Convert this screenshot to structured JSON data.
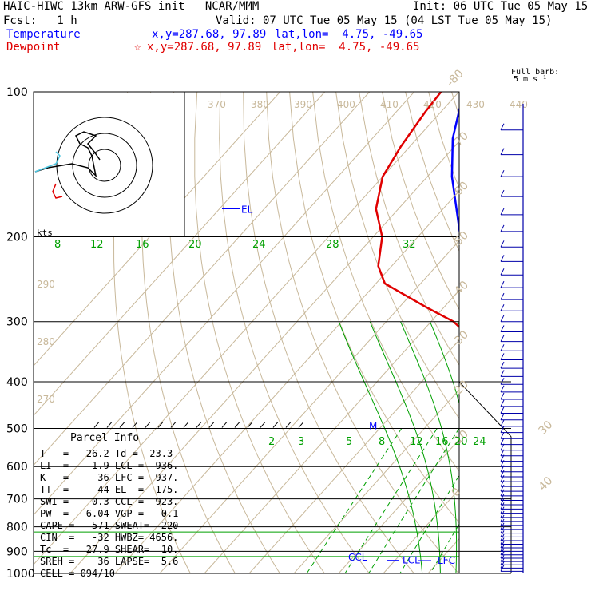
{
  "header": {
    "title": "HAIC-HIWC 13km ARW-GFS init   NCAR/MMM",
    "init": "Init: 06 UTC Tue 05 May 15",
    "fcst": "Fcst:   1 h",
    "valid": "Valid: 07 UTC Tue 05 May 15 (04 LST Tue 05 May 15)",
    "temperature_label": "Temperature",
    "temperature_xy": "x,y=287.68, 97.89",
    "temperature_latlon": "lat,lon=  4.75, -49.65",
    "dewpoint_label": "Dewpoint",
    "dewpoint_xy": "x,y=287.68, 97.89",
    "dewpoint_latlon": "lat,lon=  4.75, -49.65",
    "dewpoint_star": "☆"
  },
  "barb_legend": {
    "line1": "Full barb:",
    "line2": "5 m s⁻¹"
  },
  "hodograph": {
    "units": "kts"
  },
  "parcel_info": {
    "title": "Parcel Info",
    "rows": [
      "T   =   26.2 Td =  23.3",
      "LI  =   -1.9 LCL =  936.",
      "K   =     36 LFC =  937.",
      "TT  =     44 EL  =  175.",
      "SWI =   -0.3 CCL =  923.",
      "PW  =   6.04 VGP =   0.1",
      "CAPE =   571 SWEAT=  220",
      "CIN  =   -32 HWBZ= 4656.",
      "Tc  =   27.9 SHEAR=  10.",
      "SREH =    36 LAPSE=  5.6",
      "CELL = 094/10"
    ]
  },
  "colors": {
    "temperature": "#0000ff",
    "dewpoint": "#e00000",
    "mixing_ratio": "#00a000",
    "dry_adiabat": "#c8b89a",
    "isotherm": "#c8b89a",
    "isobar": "#000000"
  },
  "chart_data": {
    "type": "line",
    "title": "",
    "xlabel": "",
    "ylabel": "",
    "y_scale": "log",
    "ylim": [
      1000,
      100
    ],
    "pressure_ticks": [
      100,
      200,
      300,
      400,
      500,
      600,
      700,
      800,
      900,
      1000
    ],
    "isotherm_labels": [
      -80,
      -70,
      -60,
      -50,
      -40,
      -30,
      -20,
      -10,
      0,
      10,
      20,
      30,
      40
    ],
    "theta_labels": [
      370,
      380,
      390,
      400,
      410,
      420,
      430,
      440
    ],
    "theta_low_labels": [
      290,
      280,
      270
    ],
    "mixing_ratio_upper_labels": [
      8,
      12,
      16,
      20,
      24,
      28,
      32
    ],
    "mixing_ratio_lower_labels": [
      2,
      3,
      5,
      8,
      12,
      16,
      20,
      24
    ],
    "series": [
      {
        "name": "Temperature",
        "color": "#0000ff",
        "points": [
          [
            1000,
            26.2
          ],
          [
            975,
            24.5
          ],
          [
            950,
            23.2
          ],
          [
            936,
            22.4
          ],
          [
            900,
            21.0
          ],
          [
            850,
            18.0
          ],
          [
            800,
            15.0
          ],
          [
            750,
            12.0
          ],
          [
            700,
            9.0
          ],
          [
            650,
            6.0
          ],
          [
            600,
            3.0
          ],
          [
            550,
            -1.0
          ],
          [
            500,
            -4.5
          ],
          [
            450,
            -8.0
          ],
          [
            400,
            -13.0
          ],
          [
            350,
            -20.0
          ],
          [
            300,
            -27.0
          ],
          [
            250,
            -37.5
          ],
          [
            225,
            -43.5
          ],
          [
            200,
            -50.5
          ],
          [
            175,
            -57.0
          ],
          [
            150,
            -64.5
          ],
          [
            125,
            -72.0
          ],
          [
            110,
            -76.0
          ],
          [
            100,
            -79.0
          ]
        ]
      },
      {
        "name": "Dewpoint",
        "color": "#e00000",
        "points": [
          [
            1000,
            23.3
          ],
          [
            975,
            22.8
          ],
          [
            950,
            21.8
          ],
          [
            925,
            20.5
          ],
          [
            900,
            18.5
          ],
          [
            850,
            15.5
          ],
          [
            800,
            12.5
          ],
          [
            750,
            9.5
          ],
          [
            700,
            6.5
          ],
          [
            650,
            3.5
          ],
          [
            600,
            0.5
          ],
          [
            550,
            -5.0
          ],
          [
            500,
            -9.0
          ],
          [
            450,
            -11.0
          ],
          [
            400,
            -15.5
          ],
          [
            350,
            -22.0
          ],
          [
            320,
            -29.0
          ],
          [
            300,
            -35.0
          ],
          [
            280,
            -44.0
          ],
          [
            250,
            -58.0
          ],
          [
            230,
            -63.0
          ],
          [
            200,
            -68.0
          ],
          [
            175,
            -75.0
          ],
          [
            150,
            -80.0
          ],
          [
            130,
            -82.0
          ],
          [
            110,
            -83.5
          ],
          [
            100,
            -84.0
          ]
        ]
      }
    ],
    "levels": [
      {
        "label": "EL",
        "pressure": 175
      },
      {
        "label": "M",
        "pressure": 492
      },
      {
        "label": "CCL",
        "pressure": 923
      },
      {
        "label": "LCL",
        "pressure": 936
      },
      {
        "label": "LFC",
        "pressure": 937
      }
    ]
  }
}
